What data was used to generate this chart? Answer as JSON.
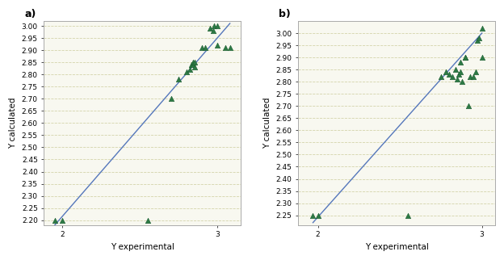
{
  "panel_a": {
    "label": "a)",
    "scatter_x": [
      1.95,
      2.0,
      2.55,
      2.7,
      2.75,
      2.8,
      2.82,
      2.83,
      2.84,
      2.84,
      2.85,
      2.85,
      2.9,
      2.92,
      2.95,
      2.97,
      2.98,
      3.0,
      3.0,
      3.05,
      3.08
    ],
    "scatter_y": [
      2.2,
      2.2,
      2.2,
      2.7,
      2.78,
      2.81,
      2.82,
      2.84,
      2.84,
      2.85,
      2.85,
      2.83,
      2.91,
      2.91,
      2.99,
      2.98,
      3.0,
      3.0,
      2.92,
      2.91,
      2.91
    ],
    "line_x": [
      1.95,
      3.08
    ],
    "line_y": [
      2.18,
      3.01
    ],
    "xlim": [
      1.88,
      3.15
    ],
    "ylim": [
      2.18,
      3.02
    ],
    "xticks": [
      2.0,
      3.0
    ],
    "yticks": [
      2.2,
      2.25,
      2.3,
      2.35,
      2.4,
      2.45,
      2.5,
      2.55,
      2.6,
      2.65,
      2.7,
      2.75,
      2.8,
      2.85,
      2.9,
      2.95,
      3.0
    ],
    "xlabel": "Y experimental",
    "ylabel": "Y calculated"
  },
  "panel_b": {
    "label": "b)",
    "scatter_x": [
      1.97,
      2.0,
      2.55,
      2.75,
      2.78,
      2.8,
      2.82,
      2.84,
      2.85,
      2.86,
      2.87,
      2.87,
      2.88,
      2.9,
      2.9,
      2.92,
      2.93,
      2.95,
      2.96,
      2.97,
      2.98,
      3.0,
      3.0
    ],
    "scatter_y": [
      2.25,
      2.25,
      2.25,
      2.82,
      2.84,
      2.83,
      2.82,
      2.85,
      2.81,
      2.83,
      2.88,
      2.84,
      2.8,
      2.9,
      2.9,
      2.7,
      2.82,
      2.82,
      2.84,
      2.97,
      2.98,
      3.02,
      2.9
    ],
    "line_x": [
      1.97,
      3.0
    ],
    "line_y": [
      2.22,
      3.0
    ],
    "xlim": [
      1.88,
      3.08
    ],
    "ylim": [
      2.21,
      3.05
    ],
    "xticks": [
      2.0,
      3.0
    ],
    "yticks": [
      2.25,
      2.3,
      2.35,
      2.4,
      2.45,
      2.5,
      2.55,
      2.6,
      2.65,
      2.7,
      2.75,
      2.8,
      2.85,
      2.9,
      2.95,
      3.0
    ],
    "xlabel": "Y experimental",
    "ylabel": "Y calculated"
  },
  "marker_color": "#2d7a45",
  "marker_edge_color": "#1a5c30",
  "line_color": "#5577bb",
  "bg_color": "#f8f8f0",
  "grid_color": "#d4d4aa",
  "label_fontsize": 7.5,
  "tick_fontsize": 6.5,
  "panel_label_fontsize": 9
}
